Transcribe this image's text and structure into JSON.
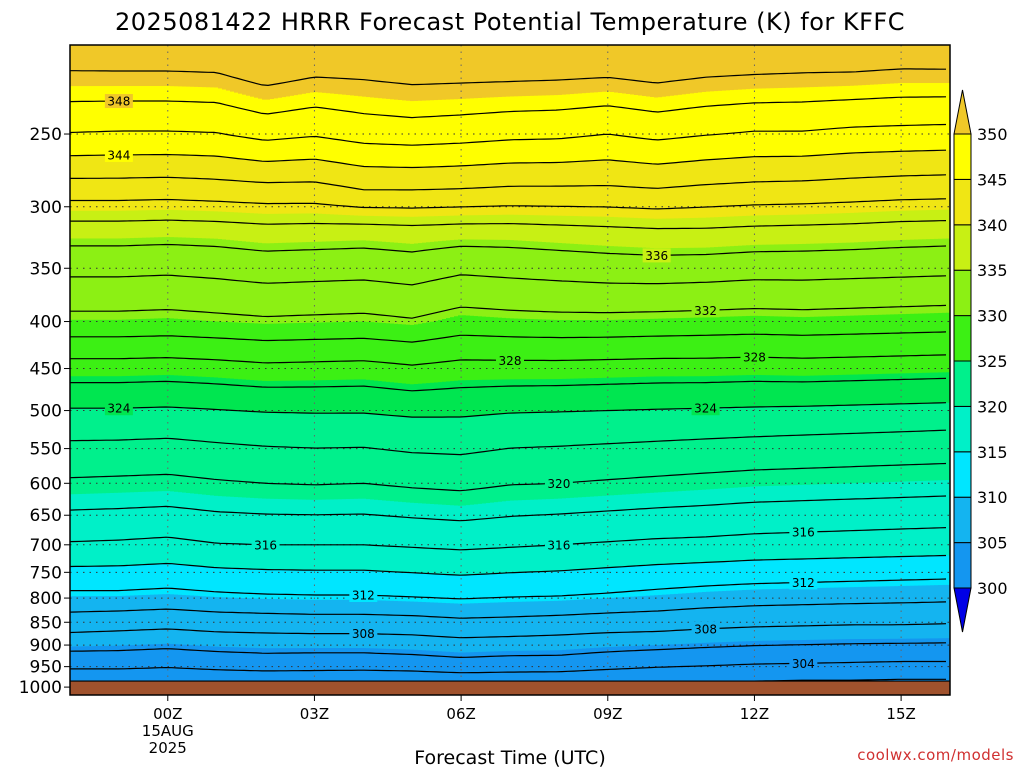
{
  "chart_data": {
    "type": "contour",
    "title": "2025081422 HRRR Forecast Potential Temperature (K) for KFFC",
    "xlabel": "Forecast Time (UTC)",
    "ylabel": "",
    "credit": "coolwx.com/models",
    "x_ticks": [
      {
        "hour": 0,
        "label": "00Z",
        "sub1": "15AUG",
        "sub2": "2025"
      },
      {
        "hour": 3,
        "label": "03Z"
      },
      {
        "hour": 6,
        "label": "06Z"
      },
      {
        "hour": 9,
        "label": "09Z"
      },
      {
        "hour": 12,
        "label": "12Z"
      },
      {
        "hour": 15,
        "label": "15Z"
      }
    ],
    "xlim": [
      -2,
      16
    ],
    "y_axis": "pressure (log, inverted)",
    "ylim": [
      1020,
      200
    ],
    "y_ticks": [
      250,
      300,
      350,
      400,
      450,
      500,
      550,
      600,
      650,
      700,
      750,
      800,
      850,
      900,
      950,
      1000
    ],
    "ground_level_hPa": 985,
    "colorbar": {
      "levels": [
        300,
        305,
        310,
        315,
        320,
        325,
        330,
        335,
        340,
        345,
        350
      ],
      "colors": [
        "#0000e6",
        "#0a5af0",
        "#1496f0",
        "#14b4f0",
        "#00e6ff",
        "#00f0c8",
        "#00f08c",
        "#00e650",
        "#3cf014",
        "#8cf014",
        "#c8f014",
        "#f0e614",
        "#ffff00",
        "#f0c828"
      ],
      "extend": "both"
    },
    "contour_interval_K": 2,
    "contour_labels": [
      {
        "value": 348,
        "hour": -1.0
      },
      {
        "value": 344,
        "hour": -1.0
      },
      {
        "value": 336,
        "hour": 10.0
      },
      {
        "value": 332,
        "hour": 11.0
      },
      {
        "value": 328,
        "hour": 7.0
      },
      {
        "value": 328,
        "hour": 12.0
      },
      {
        "value": 324,
        "hour": 11.0
      },
      {
        "value": 324,
        "hour": -1.0
      },
      {
        "value": 320,
        "hour": 8.0
      },
      {
        "value": 316,
        "hour": 2.0
      },
      {
        "value": 316,
        "hour": 8.0
      },
      {
        "value": 316,
        "hour": 13.0
      },
      {
        "value": 312,
        "hour": 4.0
      },
      {
        "value": 312,
        "hour": 13.0
      },
      {
        "value": 308,
        "hour": 4.0
      },
      {
        "value": 308,
        "hour": 11.0
      },
      {
        "value": 304,
        "hour": 13.0
      }
    ],
    "profile_hours": [
      -2,
      -1,
      0,
      1,
      2,
      3,
      4,
      5,
      6,
      7,
      8,
      9,
      10,
      11,
      12,
      13,
      14,
      15,
      16
    ],
    "profiles": [
      {
        "hour": -2,
        "theta": [
          302.5,
          304.8,
          308.6,
          311.8,
          315.8,
          319.7,
          323.2,
          327.1,
          331.4,
          334.5,
          336.9,
          340.7,
          345.9,
          349.2
        ]
      },
      {
        "hour": -1,
        "theta": [
          302.5,
          304.8,
          308.4,
          311.8,
          315.7,
          319.6,
          323.2,
          327.1,
          331.4,
          334.5,
          336.9,
          340.7,
          345.8,
          349.2
        ]
      },
      {
        "hour": 0,
        "theta": [
          302.4,
          304.6,
          308.2,
          311.6,
          315.5,
          319.5,
          323.1,
          327.0,
          331.3,
          334.4,
          336.8,
          340.6,
          345.8,
          349.2
        ]
      },
      {
        "hour": 1,
        "theta": [
          302.6,
          304.9,
          308.5,
          311.9,
          315.9,
          319.8,
          323.3,
          327.2,
          331.5,
          334.6,
          336.9,
          340.8,
          345.9,
          349.3
        ]
      },
      {
        "hour": 2,
        "theta": [
          302.7,
          305.1,
          308.6,
          312.1,
          316.0,
          320.0,
          323.5,
          327.5,
          331.7,
          334.9,
          337.2,
          341.0,
          346.6,
          350.2
        ]
      },
      {
        "hour": 3,
        "theta": [
          302.7,
          305.0,
          308.7,
          312.2,
          316.0,
          320.1,
          323.6,
          327.4,
          331.6,
          334.8,
          337.1,
          341.0,
          346.2,
          349.6
        ]
      },
      {
        "hour": 4,
        "theta": [
          302.6,
          305.0,
          308.7,
          312.2,
          316.0,
          320.0,
          323.6,
          327.3,
          331.5,
          334.7,
          337.0,
          341.7,
          346.8,
          349.8
        ]
      },
      {
        "hour": 5,
        "theta": [
          302.6,
          305.2,
          308.8,
          312.4,
          316.2,
          320.3,
          323.9,
          327.7,
          331.8,
          335.0,
          337.2,
          341.7,
          347.0,
          350.1
        ]
      },
      {
        "hour": 6,
        "theta": [
          302.8,
          305.5,
          309.1,
          312.6,
          316.4,
          320.5,
          323.9,
          327.3,
          331.1,
          334.4,
          337.0,
          341.6,
          346.8,
          350.0
        ]
      },
      {
        "hour": 7,
        "theta": [
          302.8,
          305.3,
          309.0,
          312.4,
          316.2,
          320.1,
          323.6,
          327.3,
          331.3,
          334.6,
          337.0,
          341.4,
          346.5,
          349.9
        ]
      },
      {
        "hour": 8,
        "theta": [
          302.7,
          305.3,
          308.8,
          312.3,
          316.0,
          320.0,
          323.5,
          327.3,
          331.4,
          334.8,
          337.2,
          341.4,
          346.4,
          349.8
        ]
      },
      {
        "hour": 9,
        "theta": [
          302.5,
          304.9,
          308.6,
          312.0,
          315.8,
          319.8,
          323.4,
          327.2,
          331.4,
          335.0,
          337.4,
          341.4,
          346.0,
          349.6
        ]
      },
      {
        "hour": 10,
        "theta": [
          302.3,
          304.6,
          308.5,
          311.7,
          315.6,
          319.6,
          323.3,
          327.1,
          331.3,
          335.1,
          337.6,
          341.6,
          346.5,
          350.0
        ]
      },
      {
        "hour": 11,
        "theta": [
          302.2,
          304.4,
          308.2,
          311.4,
          315.5,
          319.4,
          323.2,
          327.1,
          331.2,
          335.0,
          337.6,
          341.3,
          346.1,
          349.6
        ]
      },
      {
        "hour": 12,
        "theta": [
          302.0,
          304.2,
          308.0,
          311.2,
          315.3,
          319.2,
          323.1,
          327.0,
          331.1,
          334.8,
          337.4,
          341.1,
          345.8,
          349.4
        ]
      },
      {
        "hour": 13,
        "theta": [
          301.9,
          304.1,
          307.9,
          311.1,
          315.2,
          319.1,
          323.0,
          327.1,
          331.2,
          334.8,
          337.3,
          341.0,
          345.8,
          349.3
        ]
      },
      {
        "hour": 14,
        "theta": [
          301.9,
          304.0,
          307.8,
          311.0,
          315.1,
          319.0,
          322.9,
          327.0,
          331.1,
          334.7,
          337.2,
          340.8,
          345.5,
          349.2
        ]
      },
      {
        "hour": 15,
        "theta": [
          301.8,
          303.9,
          307.8,
          310.9,
          315.0,
          318.9,
          322.8,
          326.9,
          331.0,
          334.6,
          337.0,
          340.6,
          345.4,
          349.0
        ]
      },
      {
        "hour": 16,
        "theta": [
          301.8,
          303.9,
          307.7,
          310.8,
          314.9,
          318.8,
          322.7,
          326.8,
          330.9,
          334.5,
          336.9,
          340.5,
          345.3,
          349.0
        ]
      }
    ],
    "profile_levels_hPa": [
      985,
      940,
      860,
      790,
      700,
      600,
      510,
      450,
      400,
      350,
      320,
      290,
      250,
      220
    ]
  }
}
